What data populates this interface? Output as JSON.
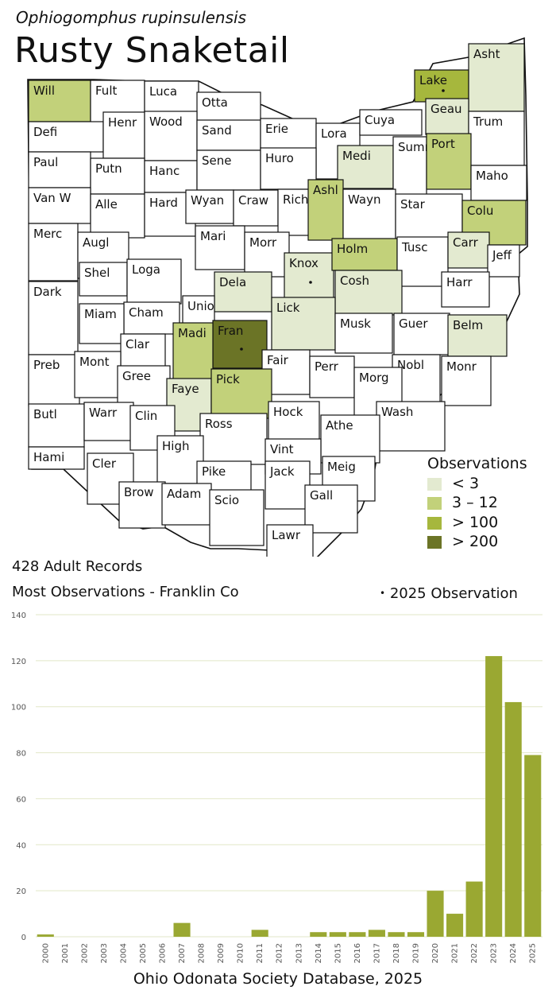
{
  "header": {
    "scientific_name": "Ophiogomphus rupinsulensis",
    "common_name": "Rusty Snaketail"
  },
  "colors": {
    "lt3": "#e3ead0",
    "3to12": "#c2d17a",
    "gt100": "#a6b73d",
    "gt200": "#6b7426",
    "bar": "#9aa832",
    "white": "#ffffff"
  },
  "legend": {
    "title": "Observations",
    "items": [
      {
        "label": "< 3",
        "color_key": "lt3"
      },
      {
        "label": "3 – 12",
        "color_key": "3to12"
      },
      {
        "label": "> 100",
        "color_key": "gt100"
      },
      {
        "label": "> 200",
        "color_key": "gt200"
      }
    ]
  },
  "map": {
    "counties": [
      {
        "name": "Will",
        "cls": "3to12"
      },
      {
        "name": "Fult",
        "cls": "white"
      },
      {
        "name": "Luca",
        "cls": "white"
      },
      {
        "name": "Otta",
        "cls": "white"
      },
      {
        "name": "Lake",
        "cls": "gt100",
        "dot": true
      },
      {
        "name": "Asht",
        "cls": "lt3"
      },
      {
        "name": "Defi",
        "cls": "white"
      },
      {
        "name": "Henr",
        "cls": "white"
      },
      {
        "name": "Wood",
        "cls": "white"
      },
      {
        "name": "Sand",
        "cls": "white"
      },
      {
        "name": "Erie",
        "cls": "white"
      },
      {
        "name": "Lora",
        "cls": "white"
      },
      {
        "name": "Cuya",
        "cls": "white"
      },
      {
        "name": "Geau",
        "cls": "lt3"
      },
      {
        "name": "Trum",
        "cls": "white"
      },
      {
        "name": "Paul",
        "cls": "white"
      },
      {
        "name": "Putn",
        "cls": "white"
      },
      {
        "name": "Hanc",
        "cls": "white"
      },
      {
        "name": "Sene",
        "cls": "white"
      },
      {
        "name": "Huro",
        "cls": "white"
      },
      {
        "name": "Medi",
        "cls": "lt3"
      },
      {
        "name": "Summ",
        "cls": "white"
      },
      {
        "name": "Port",
        "cls": "3to12"
      },
      {
        "name": "Maho",
        "cls": "white"
      },
      {
        "name": "Van W",
        "cls": "white"
      },
      {
        "name": "Alle",
        "cls": "white"
      },
      {
        "name": "Hard",
        "cls": "white"
      },
      {
        "name": "Wyan",
        "cls": "white"
      },
      {
        "name": "Craw",
        "cls": "white"
      },
      {
        "name": "Rich",
        "cls": "white"
      },
      {
        "name": "Ashl",
        "cls": "3to12"
      },
      {
        "name": "Wayn",
        "cls": "white"
      },
      {
        "name": "Star",
        "cls": "white"
      },
      {
        "name": "Colu",
        "cls": "3to12"
      },
      {
        "name": "Merc",
        "cls": "white"
      },
      {
        "name": "Augl",
        "cls": "white"
      },
      {
        "name": "Mari",
        "cls": "white"
      },
      {
        "name": "Morr",
        "cls": "white"
      },
      {
        "name": "Knox",
        "cls": "lt3",
        "dot": true
      },
      {
        "name": "Holm",
        "cls": "3to12"
      },
      {
        "name": "Tusc",
        "cls": "white"
      },
      {
        "name": "Carr",
        "cls": "lt3"
      },
      {
        "name": "Jeff",
        "cls": "white"
      },
      {
        "name": "Shel",
        "cls": "white"
      },
      {
        "name": "Loga",
        "cls": "white"
      },
      {
        "name": "Dela",
        "cls": "lt3"
      },
      {
        "name": "Cosh",
        "cls": "lt3"
      },
      {
        "name": "Harr",
        "cls": "white"
      },
      {
        "name": "Dark",
        "cls": "white"
      },
      {
        "name": "Cham",
        "cls": "white"
      },
      {
        "name": "Unio",
        "cls": "white"
      },
      {
        "name": "Lick",
        "cls": "lt3"
      },
      {
        "name": "Miam",
        "cls": "white"
      },
      {
        "name": "Fran",
        "cls": "gt200",
        "dot": true
      },
      {
        "name": "Musk",
        "cls": "white"
      },
      {
        "name": "Guer",
        "cls": "white"
      },
      {
        "name": "Belm",
        "cls": "lt3"
      },
      {
        "name": "Clar",
        "cls": "white"
      },
      {
        "name": "Preb",
        "cls": "white"
      },
      {
        "name": "Mont",
        "cls": "white"
      },
      {
        "name": "Madi",
        "cls": "3to12"
      },
      {
        "name": "Fair",
        "cls": "white"
      },
      {
        "name": "Perr",
        "cls": "white"
      },
      {
        "name": "Nobl",
        "cls": "white"
      },
      {
        "name": "Monr",
        "cls": "white"
      },
      {
        "name": "Gree",
        "cls": "white"
      },
      {
        "name": "Faye",
        "cls": "lt3"
      },
      {
        "name": "Pick",
        "cls": "3to12"
      },
      {
        "name": "Morg",
        "cls": "white"
      },
      {
        "name": "Butl",
        "cls": "white"
      },
      {
        "name": "Warr",
        "cls": "white"
      },
      {
        "name": "Clin",
        "cls": "white"
      },
      {
        "name": "Ross",
        "cls": "white"
      },
      {
        "name": "Hock",
        "cls": "white"
      },
      {
        "name": "Wash",
        "cls": "white"
      },
      {
        "name": "Athe",
        "cls": "white"
      },
      {
        "name": "Hami",
        "cls": "white"
      },
      {
        "name": "High",
        "cls": "white"
      },
      {
        "name": "Vint",
        "cls": "white"
      },
      {
        "name": "Cler",
        "cls": "white"
      },
      {
        "name": "Pike",
        "cls": "white"
      },
      {
        "name": "Jack",
        "cls": "white"
      },
      {
        "name": "Meig",
        "cls": "white"
      },
      {
        "name": "Brow",
        "cls": "white"
      },
      {
        "name": "Adam",
        "cls": "white"
      },
      {
        "name": "Scio",
        "cls": "white"
      },
      {
        "name": "Gall",
        "cls": "white"
      },
      {
        "name": "Lawr",
        "cls": "white"
      }
    ]
  },
  "summary": {
    "records": "428 Adult Records",
    "most": "Most Observations - Franklin Co",
    "obs_marker": "•",
    "obs_label": "2025  Observation"
  },
  "chart_data": {
    "type": "bar",
    "categories": [
      "2000",
      "2001",
      "2002",
      "2003",
      "2004",
      "2005",
      "2006",
      "2007",
      "2008",
      "2009",
      "2010",
      "2011",
      "2012",
      "2013",
      "2014",
      "2015",
      "2016",
      "2017",
      "2018",
      "2019",
      "2020",
      "2021",
      "2022",
      "2023",
      "2024",
      "2025"
    ],
    "values": [
      1,
      0,
      0,
      0,
      0,
      0,
      0,
      6,
      0,
      0,
      0,
      3,
      0,
      0,
      2,
      2,
      2,
      3,
      2,
      2,
      20,
      10,
      24,
      122,
      102,
      79
    ],
    "ylim": [
      0,
      140
    ],
    "yticks": [
      0,
      20,
      40,
      60,
      80,
      100,
      120,
      140
    ],
    "grid": true
  },
  "footer": {
    "source": "Ohio Odonata Society Database, 2025"
  }
}
